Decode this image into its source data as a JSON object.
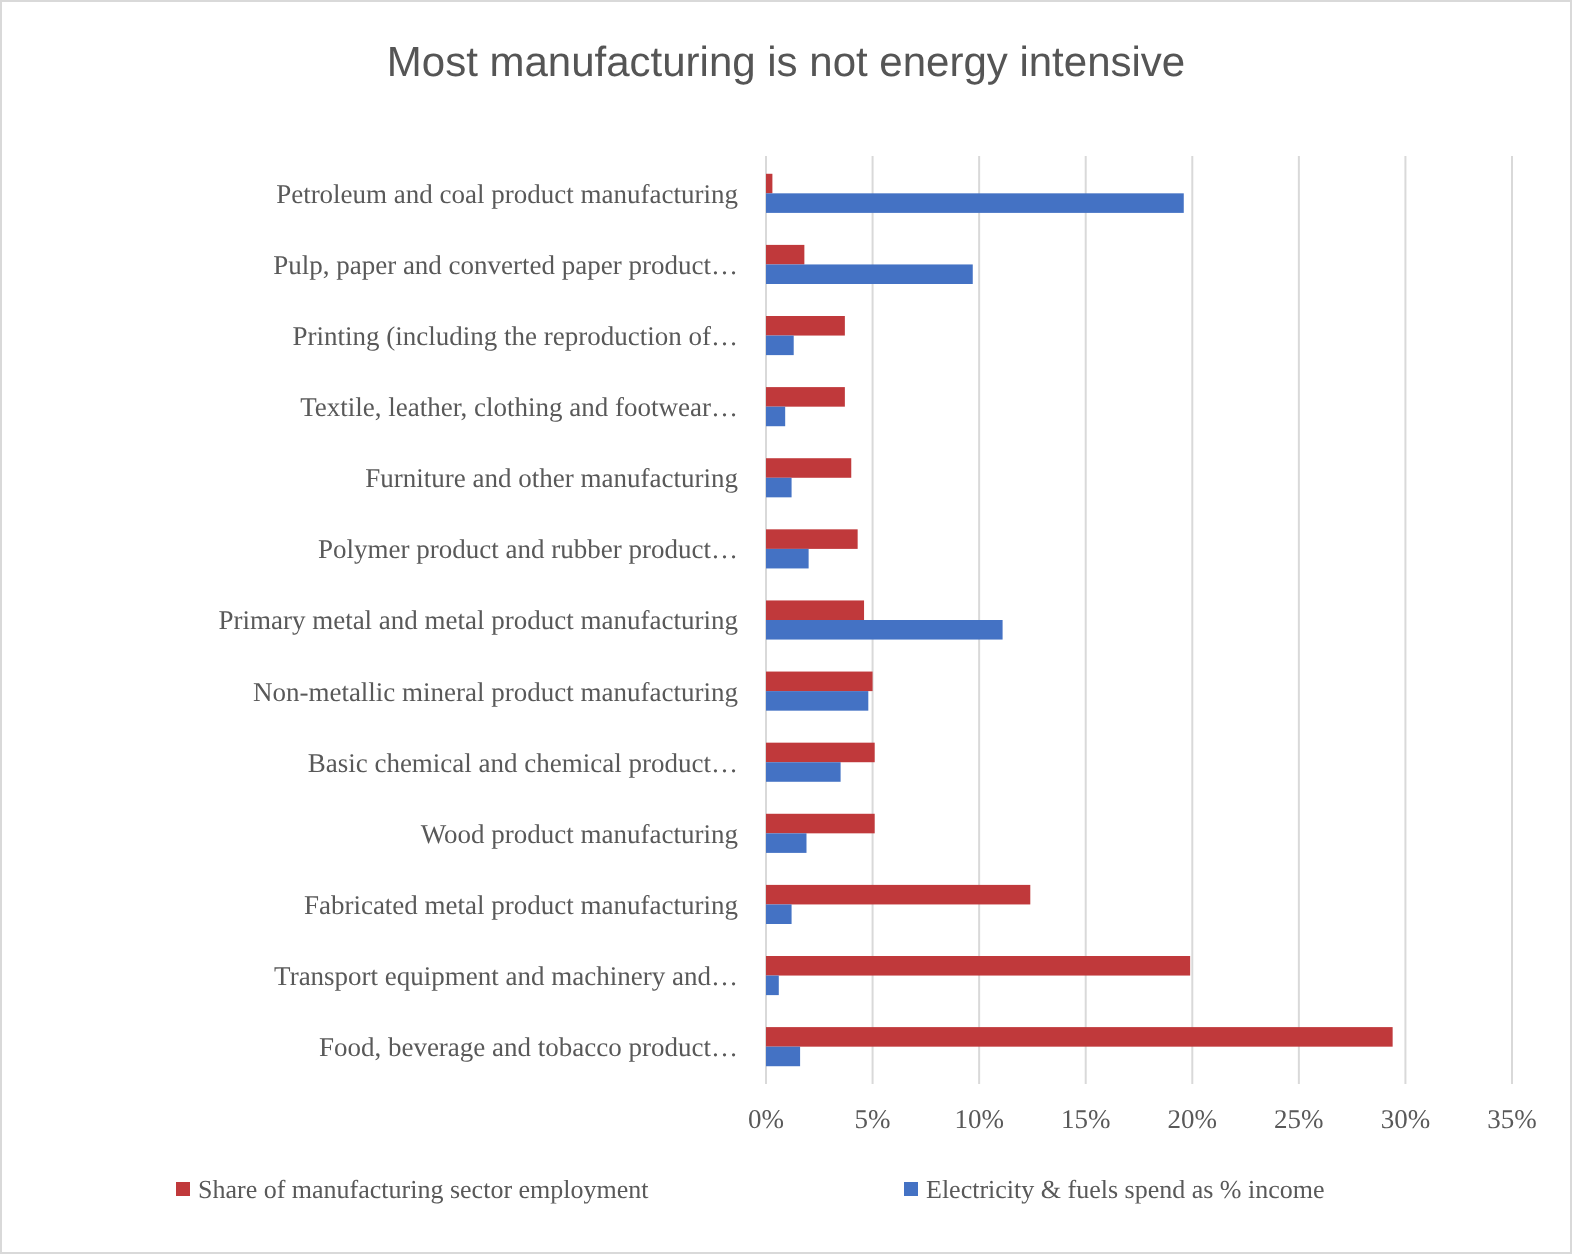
{
  "chart_data": {
    "type": "bar",
    "orientation": "horizontal",
    "title": "Most manufacturing is not energy intensive",
    "categories": [
      "Petroleum and coal product manufacturing",
      "Pulp, paper and converted paper product…",
      "Printing (including the reproduction of…",
      "Textile, leather, clothing and footwear…",
      "Furniture and other manufacturing",
      "Polymer product and rubber product…",
      "Primary metal and metal product manufacturing",
      "Non-metallic mineral product manufacturing",
      "Basic chemical and chemical product…",
      "Wood product manufacturing",
      "Fabricated metal product manufacturing",
      "Transport equipment and machinery and…",
      "Food, beverage and tobacco product…"
    ],
    "series": [
      {
        "name": "Share of manufacturing sector employment",
        "color": "#c0393b",
        "values": [
          0.3,
          1.8,
          3.7,
          3.7,
          4.0,
          4.3,
          4.6,
          5.0,
          5.1,
          5.1,
          12.4,
          19.9,
          29.4
        ]
      },
      {
        "name": "Electricity & fuels spend as % income",
        "color": "#4472c4",
        "values": [
          19.6,
          9.7,
          1.3,
          0.9,
          1.2,
          2.0,
          11.1,
          4.8,
          3.5,
          1.9,
          1.2,
          0.6,
          1.6
        ]
      }
    ],
    "xlim": [
      0,
      35
    ],
    "xticks": [
      {
        "value": 0,
        "label": "0%"
      },
      {
        "value": 5,
        "label": "5%"
      },
      {
        "value": 10,
        "label": "10%"
      },
      {
        "value": 15,
        "label": "15%"
      },
      {
        "value": 20,
        "label": "20%"
      },
      {
        "value": 25,
        "label": "25%"
      },
      {
        "value": 30,
        "label": "30%"
      },
      {
        "value": 35,
        "label": "35%"
      }
    ],
    "grid": "x",
    "legend": "bottom"
  }
}
